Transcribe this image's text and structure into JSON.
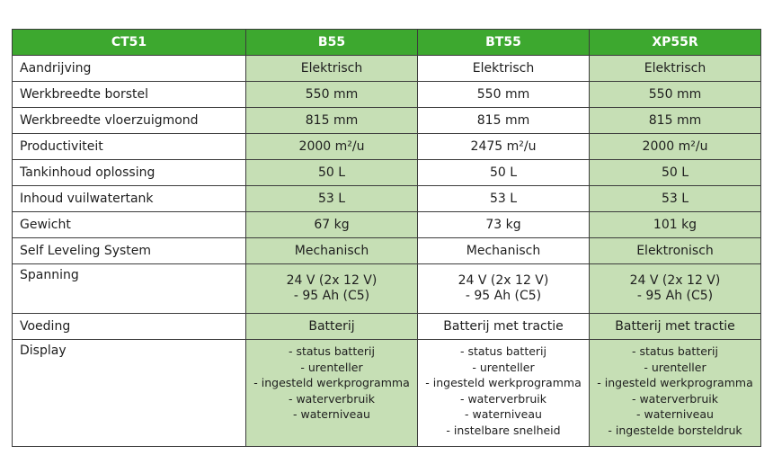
{
  "table": {
    "headers": [
      "CT51",
      "B55",
      "BT55",
      "XP55R"
    ],
    "colors": {
      "header_bg": "#3da82f",
      "highlight_bg": "#c6dfb5",
      "border": "#3c3c3c"
    },
    "rows": [
      {
        "label": "Aandrijving",
        "values": [
          [
            "Elektrisch"
          ],
          [
            "Elektrisch"
          ],
          [
            "Elektrisch"
          ]
        ]
      },
      {
        "label": "Werkbreedte borstel",
        "values": [
          [
            "550 mm"
          ],
          [
            "550 mm"
          ],
          [
            "550 mm"
          ]
        ]
      },
      {
        "label": "Werkbreedte vloerzuigmond",
        "values": [
          [
            "815 mm"
          ],
          [
            "815 mm"
          ],
          [
            "815 mm"
          ]
        ]
      },
      {
        "label": "Productiviteit",
        "values": [
          [
            "2000 m²/u"
          ],
          [
            "2475 m²/u"
          ],
          [
            "2000 m²/u"
          ]
        ]
      },
      {
        "label": "Tankinhoud oplossing",
        "values": [
          [
            "50 L"
          ],
          [
            "50 L"
          ],
          [
            "50 L"
          ]
        ]
      },
      {
        "label": "Inhoud vuilwatertank",
        "values": [
          [
            "53 L"
          ],
          [
            "53 L"
          ],
          [
            "53 L"
          ]
        ]
      },
      {
        "label": "Gewicht",
        "values": [
          [
            "67 kg"
          ],
          [
            "73 kg"
          ],
          [
            "101 kg"
          ]
        ]
      },
      {
        "label": "Self Leveling System",
        "values": [
          [
            "Mechanisch"
          ],
          [
            "Mechanisch"
          ],
          [
            "Elektronisch"
          ]
        ]
      },
      {
        "label": "Spanning",
        "values": [
          [
            "24 V (2x 12 V)",
            "- 95 Ah (C5)"
          ],
          [
            "24 V (2x 12 V)",
            "- 95 Ah (C5)"
          ],
          [
            "24 V (2x 12 V)",
            "- 95 Ah (C5)"
          ]
        ]
      },
      {
        "label": "Voeding",
        "values": [
          [
            "Batterij"
          ],
          [
            "Batterij met tractie"
          ],
          [
            "Batterij met tractie"
          ]
        ]
      },
      {
        "label": "Display",
        "values": [
          [
            "- status batterij",
            "- urenteller",
            "- ingesteld werkprogramma",
            "- waterverbruik",
            "- waterniveau"
          ],
          [
            "- status batterij",
            "- urenteller",
            "- ingesteld werkprogramma",
            "- waterverbruik",
            "- waterniveau",
            "- instelbare snelheid"
          ],
          [
            "- status batterij",
            "- urenteller",
            "- ingesteld werkprogramma",
            "- waterverbruik",
            "- waterniveau",
            "- ingestelde borsteldruk"
          ]
        ]
      }
    ]
  }
}
